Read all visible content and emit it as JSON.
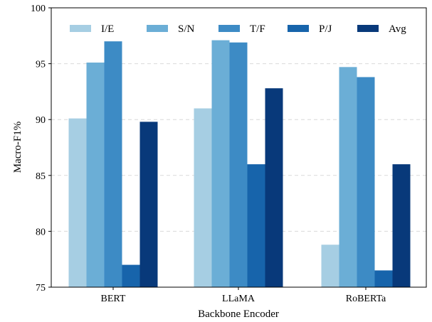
{
  "chart_data": {
    "type": "bar",
    "title": "",
    "xlabel": "Backbone Encoder",
    "ylabel": "Macro-F1%",
    "ylim": [
      75,
      100
    ],
    "yticks": [
      75,
      80,
      85,
      90,
      95,
      100
    ],
    "grid": true,
    "legend_position": "top",
    "categories": [
      "BERT",
      "LLaMA",
      "RoBERTa"
    ],
    "series": [
      {
        "name": "I/E",
        "color": "#a6cee3",
        "values": [
          90.1,
          91.0,
          78.8
        ]
      },
      {
        "name": "S/N",
        "color": "#6baed6",
        "values": [
          95.1,
          97.1,
          94.7
        ]
      },
      {
        "name": "T/F",
        "color": "#3d8bc5",
        "values": [
          97.0,
          96.9,
          93.8
        ]
      },
      {
        "name": "P/J",
        "color": "#1764ab",
        "values": [
          77.0,
          86.0,
          76.5
        ]
      },
      {
        "name": "Avg",
        "color": "#08397a",
        "values": [
          89.8,
          92.8,
          86.0
        ]
      }
    ]
  }
}
